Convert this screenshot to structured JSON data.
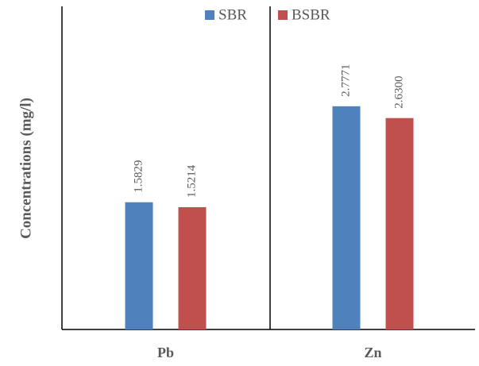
{
  "chart_data": {
    "type": "bar",
    "y_label": "Concentrations (mg/l)",
    "categories": [
      "Pb",
      "Zn"
    ],
    "series": [
      {
        "name": "SBR",
        "color": "#4f81bd",
        "values": [
          1.5829,
          2.7771
        ],
        "value_labels": [
          "1.5829",
          "2.7771"
        ]
      },
      {
        "name": "BSBR",
        "color": "#c0504d",
        "values": [
          1.5214,
          2.63
        ],
        "value_labels": [
          "1.5214",
          "2.6300"
        ]
      }
    ],
    "ylim": [
      0,
      4
    ]
  }
}
